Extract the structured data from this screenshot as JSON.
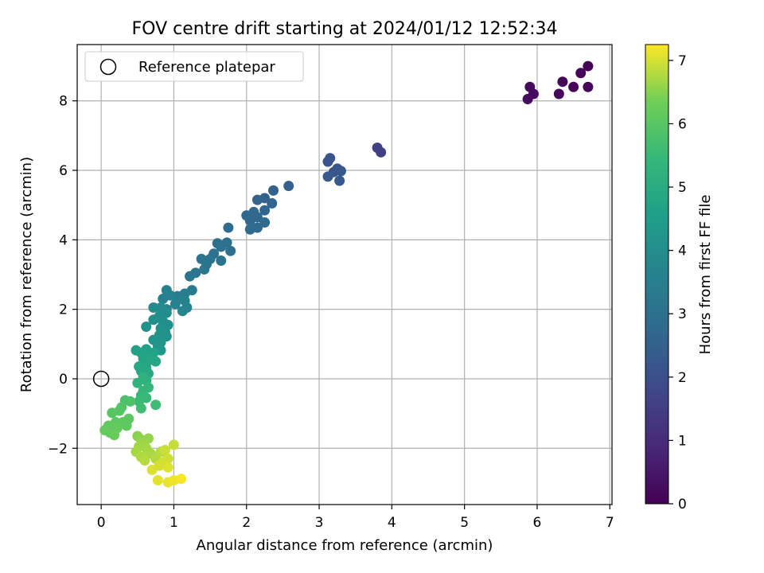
{
  "chart_data": {
    "type": "scatter",
    "title": "FOV centre drift starting at 2024/01/12 12:52:34",
    "xlabel": "Angular distance from reference (arcmin)",
    "ylabel": "Rotation from reference (arcmin)",
    "xlim": [
      -0.33,
      7.03
    ],
    "ylim": [
      -3.62,
      9.62
    ],
    "xticks": [
      "0",
      "1",
      "2",
      "3",
      "4",
      "5",
      "6",
      "7"
    ],
    "yticks": [
      "−2",
      "0",
      "2",
      "4",
      "6",
      "8"
    ],
    "grid": true,
    "legend": {
      "placement": "top-left",
      "entries": [
        "Reference platepar"
      ]
    },
    "reference_point": {
      "x": 0,
      "y": 0
    },
    "colorbar": {
      "label": "Hours from first FF file",
      "colormap": "viridis",
      "range": [
        0,
        7.25
      ],
      "ticks": [
        "0",
        "1",
        "2",
        "3",
        "4",
        "5",
        "6",
        "7"
      ]
    },
    "series": [
      {
        "points": [
          {
            "x": 6.7,
            "y": 9.0,
            "c": 0.05
          },
          {
            "x": 6.6,
            "y": 8.8,
            "c": 0.08
          },
          {
            "x": 6.35,
            "y": 8.55,
            "c": 0.1
          },
          {
            "x": 6.5,
            "y": 8.4,
            "c": 0.12
          },
          {
            "x": 6.7,
            "y": 8.4,
            "c": 0.15
          },
          {
            "x": 6.3,
            "y": 8.2,
            "c": 0.18
          },
          {
            "x": 5.9,
            "y": 8.4,
            "c": 0.2
          },
          {
            "x": 5.95,
            "y": 8.2,
            "c": 0.22
          },
          {
            "x": 5.87,
            "y": 8.05,
            "c": 0.25
          },
          {
            "x": 3.8,
            "y": 6.65,
            "c": 1.5
          },
          {
            "x": 3.85,
            "y": 6.52,
            "c": 1.55
          },
          {
            "x": 3.15,
            "y": 6.35,
            "c": 2.1
          },
          {
            "x": 3.12,
            "y": 6.25,
            "c": 2.15
          },
          {
            "x": 3.25,
            "y": 6.05,
            "c": 2.18
          },
          {
            "x": 3.2,
            "y": 5.95,
            "c": 2.2
          },
          {
            "x": 3.3,
            "y": 5.98,
            "c": 2.22
          },
          {
            "x": 3.12,
            "y": 5.82,
            "c": 2.25
          },
          {
            "x": 3.28,
            "y": 5.7,
            "c": 2.28
          },
          {
            "x": 2.58,
            "y": 5.55,
            "c": 2.5
          },
          {
            "x": 2.37,
            "y": 5.42,
            "c": 2.55
          },
          {
            "x": 2.25,
            "y": 5.2,
            "c": 2.58
          },
          {
            "x": 2.15,
            "y": 5.15,
            "c": 2.6
          },
          {
            "x": 2.35,
            "y": 5.05,
            "c": 2.62
          },
          {
            "x": 2.25,
            "y": 4.85,
            "c": 2.65
          },
          {
            "x": 2.1,
            "y": 4.8,
            "c": 2.68
          },
          {
            "x": 2.0,
            "y": 4.7,
            "c": 2.7
          },
          {
            "x": 2.15,
            "y": 4.65,
            "c": 2.72
          },
          {
            "x": 2.05,
            "y": 4.55,
            "c": 2.75
          },
          {
            "x": 2.25,
            "y": 4.5,
            "c": 2.78
          },
          {
            "x": 2.15,
            "y": 4.35,
            "c": 2.8
          },
          {
            "x": 2.05,
            "y": 4.3,
            "c": 2.82
          },
          {
            "x": 1.75,
            "y": 4.35,
            "c": 2.9
          },
          {
            "x": 1.6,
            "y": 3.9,
            "c": 2.95
          },
          {
            "x": 1.73,
            "y": 3.92,
            "c": 2.98
          },
          {
            "x": 1.65,
            "y": 3.8,
            "c": 3.0
          },
          {
            "x": 1.78,
            "y": 3.68,
            "c": 3.02
          },
          {
            "x": 1.55,
            "y": 3.6,
            "c": 3.05
          },
          {
            "x": 1.5,
            "y": 3.45,
            "c": 3.08
          },
          {
            "x": 1.38,
            "y": 3.45,
            "c": 3.1
          },
          {
            "x": 1.65,
            "y": 3.4,
            "c": 3.12
          },
          {
            "x": 1.45,
            "y": 3.3,
            "c": 3.15
          },
          {
            "x": 1.42,
            "y": 3.15,
            "c": 3.18
          },
          {
            "x": 1.3,
            "y": 3.05,
            "c": 3.2
          },
          {
            "x": 1.22,
            "y": 2.95,
            "c": 3.22
          },
          {
            "x": 1.25,
            "y": 2.55,
            "c": 3.4
          },
          {
            "x": 1.15,
            "y": 2.45,
            "c": 3.45
          },
          {
            "x": 1.05,
            "y": 2.38,
            "c": 3.5
          },
          {
            "x": 0.9,
            "y": 2.55,
            "c": 3.55
          },
          {
            "x": 0.95,
            "y": 2.4,
            "c": 3.58
          },
          {
            "x": 0.85,
            "y": 2.3,
            "c": 3.6
          },
          {
            "x": 1.15,
            "y": 2.25,
            "c": 3.62
          },
          {
            "x": 1.02,
            "y": 2.15,
            "c": 3.65
          },
          {
            "x": 1.18,
            "y": 2.05,
            "c": 3.68
          },
          {
            "x": 0.9,
            "y": 2.0,
            "c": 3.7
          },
          {
            "x": 1.12,
            "y": 1.95,
            "c": 3.72
          },
          {
            "x": 0.72,
            "y": 2.05,
            "c": 3.9
          },
          {
            "x": 0.82,
            "y": 2.05,
            "c": 3.92
          },
          {
            "x": 0.9,
            "y": 1.9,
            "c": 3.95
          },
          {
            "x": 0.8,
            "y": 1.8,
            "c": 3.98
          },
          {
            "x": 0.72,
            "y": 1.7,
            "c": 4.0
          },
          {
            "x": 0.85,
            "y": 1.65,
            "c": 4.02
          },
          {
            "x": 0.92,
            "y": 1.55,
            "c": 4.05
          },
          {
            "x": 0.62,
            "y": 1.5,
            "c": 4.08
          },
          {
            "x": 0.82,
            "y": 1.45,
            "c": 4.1
          },
          {
            "x": 0.88,
            "y": 1.35,
            "c": 4.12
          },
          {
            "x": 0.8,
            "y": 1.25,
            "c": 4.15
          },
          {
            "x": 0.9,
            "y": 1.22,
            "c": 4.18
          },
          {
            "x": 0.72,
            "y": 1.12,
            "c": 4.2
          },
          {
            "x": 0.82,
            "y": 1.05,
            "c": 4.22
          },
          {
            "x": 0.78,
            "y": 0.95,
            "c": 4.25
          },
          {
            "x": 0.82,
            "y": 0.82,
            "c": 4.28
          },
          {
            "x": 0.62,
            "y": 0.85,
            "c": 4.6
          },
          {
            "x": 0.48,
            "y": 0.82,
            "c": 4.65
          },
          {
            "x": 0.55,
            "y": 0.75,
            "c": 4.68
          },
          {
            "x": 0.72,
            "y": 0.75,
            "c": 4.7
          },
          {
            "x": 0.65,
            "y": 0.65,
            "c": 4.72
          },
          {
            "x": 0.58,
            "y": 0.58,
            "c": 4.75
          },
          {
            "x": 0.7,
            "y": 0.55,
            "c": 4.78
          },
          {
            "x": 0.62,
            "y": 0.45,
            "c": 4.8
          },
          {
            "x": 0.75,
            "y": 0.5,
            "c": 4.82
          },
          {
            "x": 0.52,
            "y": 0.35,
            "c": 4.85
          },
          {
            "x": 0.62,
            "y": 0.3,
            "c": 4.88
          },
          {
            "x": 0.55,
            "y": 0.22,
            "c": 4.9
          },
          {
            "x": 0.65,
            "y": 0.15,
            "c": 4.92
          },
          {
            "x": 0.58,
            "y": 0.05,
            "c": 5.2
          },
          {
            "x": 0.62,
            "y": -0.05,
            "c": 5.25
          },
          {
            "x": 0.5,
            "y": -0.12,
            "c": 5.3
          },
          {
            "x": 0.65,
            "y": -0.25,
            "c": 5.35
          },
          {
            "x": 0.58,
            "y": -0.35,
            "c": 5.4
          },
          {
            "x": 0.55,
            "y": -0.48,
            "c": 5.45
          },
          {
            "x": 0.62,
            "y": -0.55,
            "c": 5.5
          },
          {
            "x": 0.52,
            "y": -0.65,
            "c": 5.55
          },
          {
            "x": 0.75,
            "y": -0.75,
            "c": 5.58
          },
          {
            "x": 0.55,
            "y": -0.85,
            "c": 5.62
          },
          {
            "x": 0.33,
            "y": -0.62,
            "c": 5.8
          },
          {
            "x": 0.4,
            "y": -0.65,
            "c": 5.85
          },
          {
            "x": 0.28,
            "y": -0.82,
            "c": 5.9
          },
          {
            "x": 0.25,
            "y": -0.92,
            "c": 5.95
          },
          {
            "x": 0.15,
            "y": -0.98,
            "c": 6.0
          },
          {
            "x": 0.38,
            "y": -1.15,
            "c": 6.05
          },
          {
            "x": 0.3,
            "y": -1.25,
            "c": 6.08
          },
          {
            "x": 0.2,
            "y": -1.25,
            "c": 6.1
          },
          {
            "x": 0.35,
            "y": -1.35,
            "c": 6.12
          },
          {
            "x": 0.1,
            "y": -1.35,
            "c": 6.15
          },
          {
            "x": 0.22,
            "y": -1.42,
            "c": 6.18
          },
          {
            "x": 0.05,
            "y": -1.48,
            "c": 6.2
          },
          {
            "x": 0.12,
            "y": -1.55,
            "c": 6.22
          },
          {
            "x": 0.18,
            "y": -1.62,
            "c": 6.25
          },
          {
            "x": 0.5,
            "y": -1.65,
            "c": 6.5
          },
          {
            "x": 0.55,
            "y": -1.75,
            "c": 6.55
          },
          {
            "x": 0.65,
            "y": -1.72,
            "c": 6.58
          },
          {
            "x": 0.58,
            "y": -1.85,
            "c": 6.62
          },
          {
            "x": 0.52,
            "y": -1.95,
            "c": 6.65
          },
          {
            "x": 0.62,
            "y": -2.0,
            "c": 6.68
          },
          {
            "x": 0.48,
            "y": -2.1,
            "c": 6.7
          },
          {
            "x": 0.68,
            "y": -2.15,
            "c": 6.72
          },
          {
            "x": 0.55,
            "y": -2.25,
            "c": 6.75
          },
          {
            "x": 0.75,
            "y": -2.3,
            "c": 6.78
          },
          {
            "x": 0.6,
            "y": -2.35,
            "c": 6.8
          },
          {
            "x": 0.82,
            "y": -2.1,
            "c": 6.82
          },
          {
            "x": 1.0,
            "y": -1.9,
            "c": 6.9
          },
          {
            "x": 0.88,
            "y": -2.05,
            "c": 6.92
          },
          {
            "x": 0.92,
            "y": -2.3,
            "c": 6.95
          },
          {
            "x": 0.85,
            "y": -2.4,
            "c": 6.98
          },
          {
            "x": 0.8,
            "y": -2.5,
            "c": 7.0
          },
          {
            "x": 0.7,
            "y": -2.62,
            "c": 7.02
          },
          {
            "x": 0.92,
            "y": -2.55,
            "c": 7.05
          },
          {
            "x": 0.78,
            "y": -2.92,
            "c": 7.08
          },
          {
            "x": 0.92,
            "y": -2.98,
            "c": 7.12
          },
          {
            "x": 1.0,
            "y": -2.92,
            "c": 7.15
          },
          {
            "x": 1.1,
            "y": -2.88,
            "c": 7.2
          }
        ]
      }
    ]
  }
}
